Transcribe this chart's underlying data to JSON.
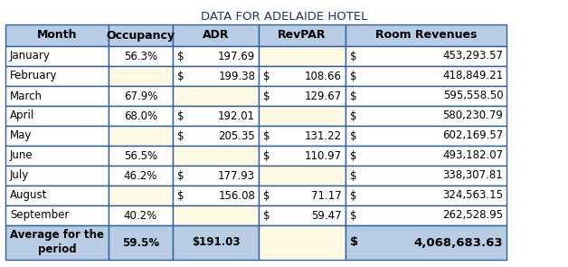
{
  "title": "DATA FOR ADELAIDE HOTEL",
  "headers": [
    "Month",
    "Occupancy",
    "ADR",
    "RevPAR",
    "Room Revenues"
  ],
  "rows": [
    {
      "month": "January",
      "occ": "56.3%",
      "adr_sym": "$",
      "adr_val": "197.69",
      "rev_sym": "",
      "rev_val": "",
      "rr_sym": "$",
      "rr_val": "453,293.57",
      "occ_yellow": false,
      "adr_yellow": false,
      "rev_yellow": true
    },
    {
      "month": "February",
      "occ": "",
      "adr_sym": "$",
      "adr_val": "199.38",
      "rev_sym": "$",
      "rev_val": "108.66",
      "rr_sym": "$",
      "rr_val": "418,849.21",
      "occ_yellow": true,
      "adr_yellow": false,
      "rev_yellow": false
    },
    {
      "month": "March",
      "occ": "67.9%",
      "adr_sym": "",
      "adr_val": "",
      "rev_sym": "$",
      "rev_val": "129.67",
      "rr_sym": "$",
      "rr_val": "595,558.50",
      "occ_yellow": false,
      "adr_yellow": true,
      "rev_yellow": false
    },
    {
      "month": "April",
      "occ": "68.0%",
      "adr_sym": "$",
      "adr_val": "192.01",
      "rev_sym": "",
      "rev_val": "",
      "rr_sym": "$",
      "rr_val": "580,230.79",
      "occ_yellow": false,
      "adr_yellow": false,
      "rev_yellow": true
    },
    {
      "month": "May",
      "occ": "",
      "adr_sym": "$",
      "adr_val": "205.35",
      "rev_sym": "$",
      "rev_val": "131.22",
      "rr_sym": "$",
      "rr_val": "602,169.57",
      "occ_yellow": true,
      "adr_yellow": false,
      "rev_yellow": false
    },
    {
      "month": "June",
      "occ": "56.5%",
      "adr_sym": "",
      "adr_val": "",
      "rev_sym": "$",
      "rev_val": "110.97",
      "rr_sym": "$",
      "rr_val": "493,182.07",
      "occ_yellow": false,
      "adr_yellow": true,
      "rev_yellow": false
    },
    {
      "month": "July",
      "occ": "46.2%",
      "adr_sym": "$",
      "adr_val": "177.93",
      "rev_sym": "",
      "rev_val": "",
      "rr_sym": "$",
      "rr_val": "338,307.81",
      "occ_yellow": false,
      "adr_yellow": false,
      "rev_yellow": true
    },
    {
      "month": "August",
      "occ": "",
      "adr_sym": "$",
      "adr_val": "156.08",
      "rev_sym": "$",
      "rev_val": "71.17",
      "rr_sym": "$",
      "rr_val": "324,563.15",
      "occ_yellow": true,
      "adr_yellow": false,
      "rev_yellow": false
    },
    {
      "month": "September",
      "occ": "40.2%",
      "adr_sym": "",
      "adr_val": "",
      "rev_sym": "$",
      "rev_val": "59.47",
      "rr_sym": "$",
      "rr_val": "262,528.95",
      "occ_yellow": false,
      "adr_yellow": true,
      "rev_yellow": false
    }
  ],
  "footer_occ": "59.5%",
  "footer_adr": "$191.03",
  "footer_rr_sym": "$",
  "footer_rr_val": "4,068,683.63",
  "header_bg": "#b8cce4",
  "footer_bg": "#b8cce4",
  "yellow_bg": "#fef9e3",
  "white_bg": "#ffffff",
  "border_color": "#2e5f9e",
  "title_color": "#1f3864",
  "title_fontsize": 9.5,
  "cell_fontsize": 8.5,
  "header_fontsize": 9.0
}
